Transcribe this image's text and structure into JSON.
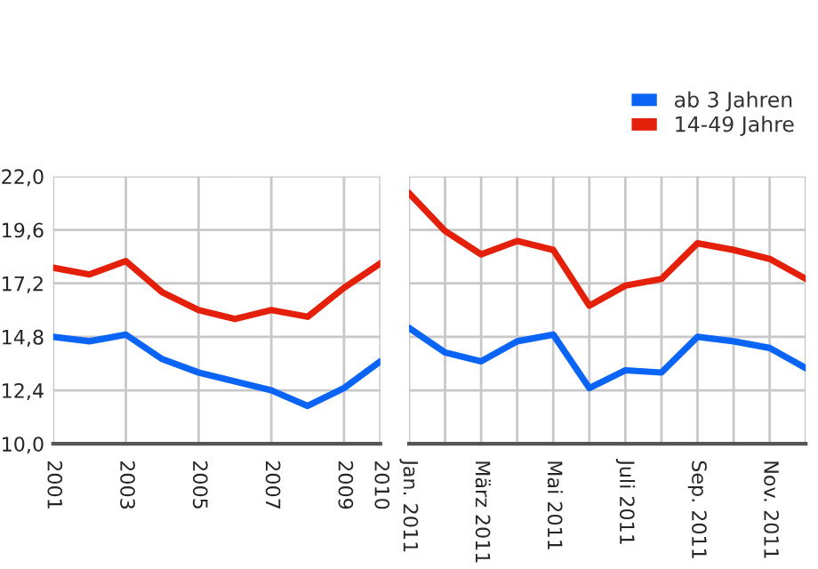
{
  "chart_data": [
    {
      "type": "line",
      "x": [
        2001,
        2002,
        2003,
        2004,
        2005,
        2006,
        2007,
        2008,
        2009,
        2010
      ],
      "xlim": [
        2001,
        2010
      ],
      "xticks": [
        2001,
        2003,
        2005,
        2007,
        2009,
        2010
      ],
      "ylim": [
        10,
        22
      ],
      "yticks": [
        {
          "value": 10,
          "label": "10,0"
        },
        {
          "value": 12.4,
          "label": "12,4"
        },
        {
          "value": 14.8,
          "label": "14,8"
        },
        {
          "value": 17.2,
          "label": "17,2"
        },
        {
          "value": 19.6,
          "label": "19,6"
        },
        {
          "value": 22,
          "label": "22,0"
        }
      ],
      "grid": true,
      "legend": false,
      "series": [
        {
          "color": "#0a64f5",
          "values": [
            14.8,
            14.6,
            14.9,
            13.8,
            13.2,
            12.8,
            12.4,
            11.7,
            12.5,
            13.7
          ]
        },
        {
          "color": "#e4200a",
          "values": [
            17.9,
            17.6,
            18.2,
            16.8,
            16.0,
            15.6,
            16.0,
            15.7,
            17.0,
            18.1
          ]
        }
      ]
    },
    {
      "type": "line",
      "categories": [
        "Jan. 2011",
        null,
        "März 2011",
        null,
        "Mai 2011",
        null,
        "Juli 2011",
        null,
        "Sep. 2011",
        null,
        "Nov. 2011",
        null
      ],
      "ylim": [
        10,
        22
      ],
      "tick_labels": "x",
      "grid": true,
      "legend": "top right",
      "series": [
        {
          "name": "ab 3 Jahren",
          "color": "#0a64f5",
          "values": [
            15.2,
            14.1,
            13.7,
            14.6,
            14.9,
            12.5,
            13.3,
            13.2,
            14.8,
            14.6,
            14.3,
            13.4
          ]
        },
        {
          "name": "14-49 Jahre",
          "color": "#e4200a",
          "values": [
            21.25,
            19.55,
            18.5,
            19.1,
            18.7,
            16.2,
            17.1,
            17.4,
            19.0,
            18.7,
            18.3,
            17.4
          ]
        }
      ]
    }
  ]
}
